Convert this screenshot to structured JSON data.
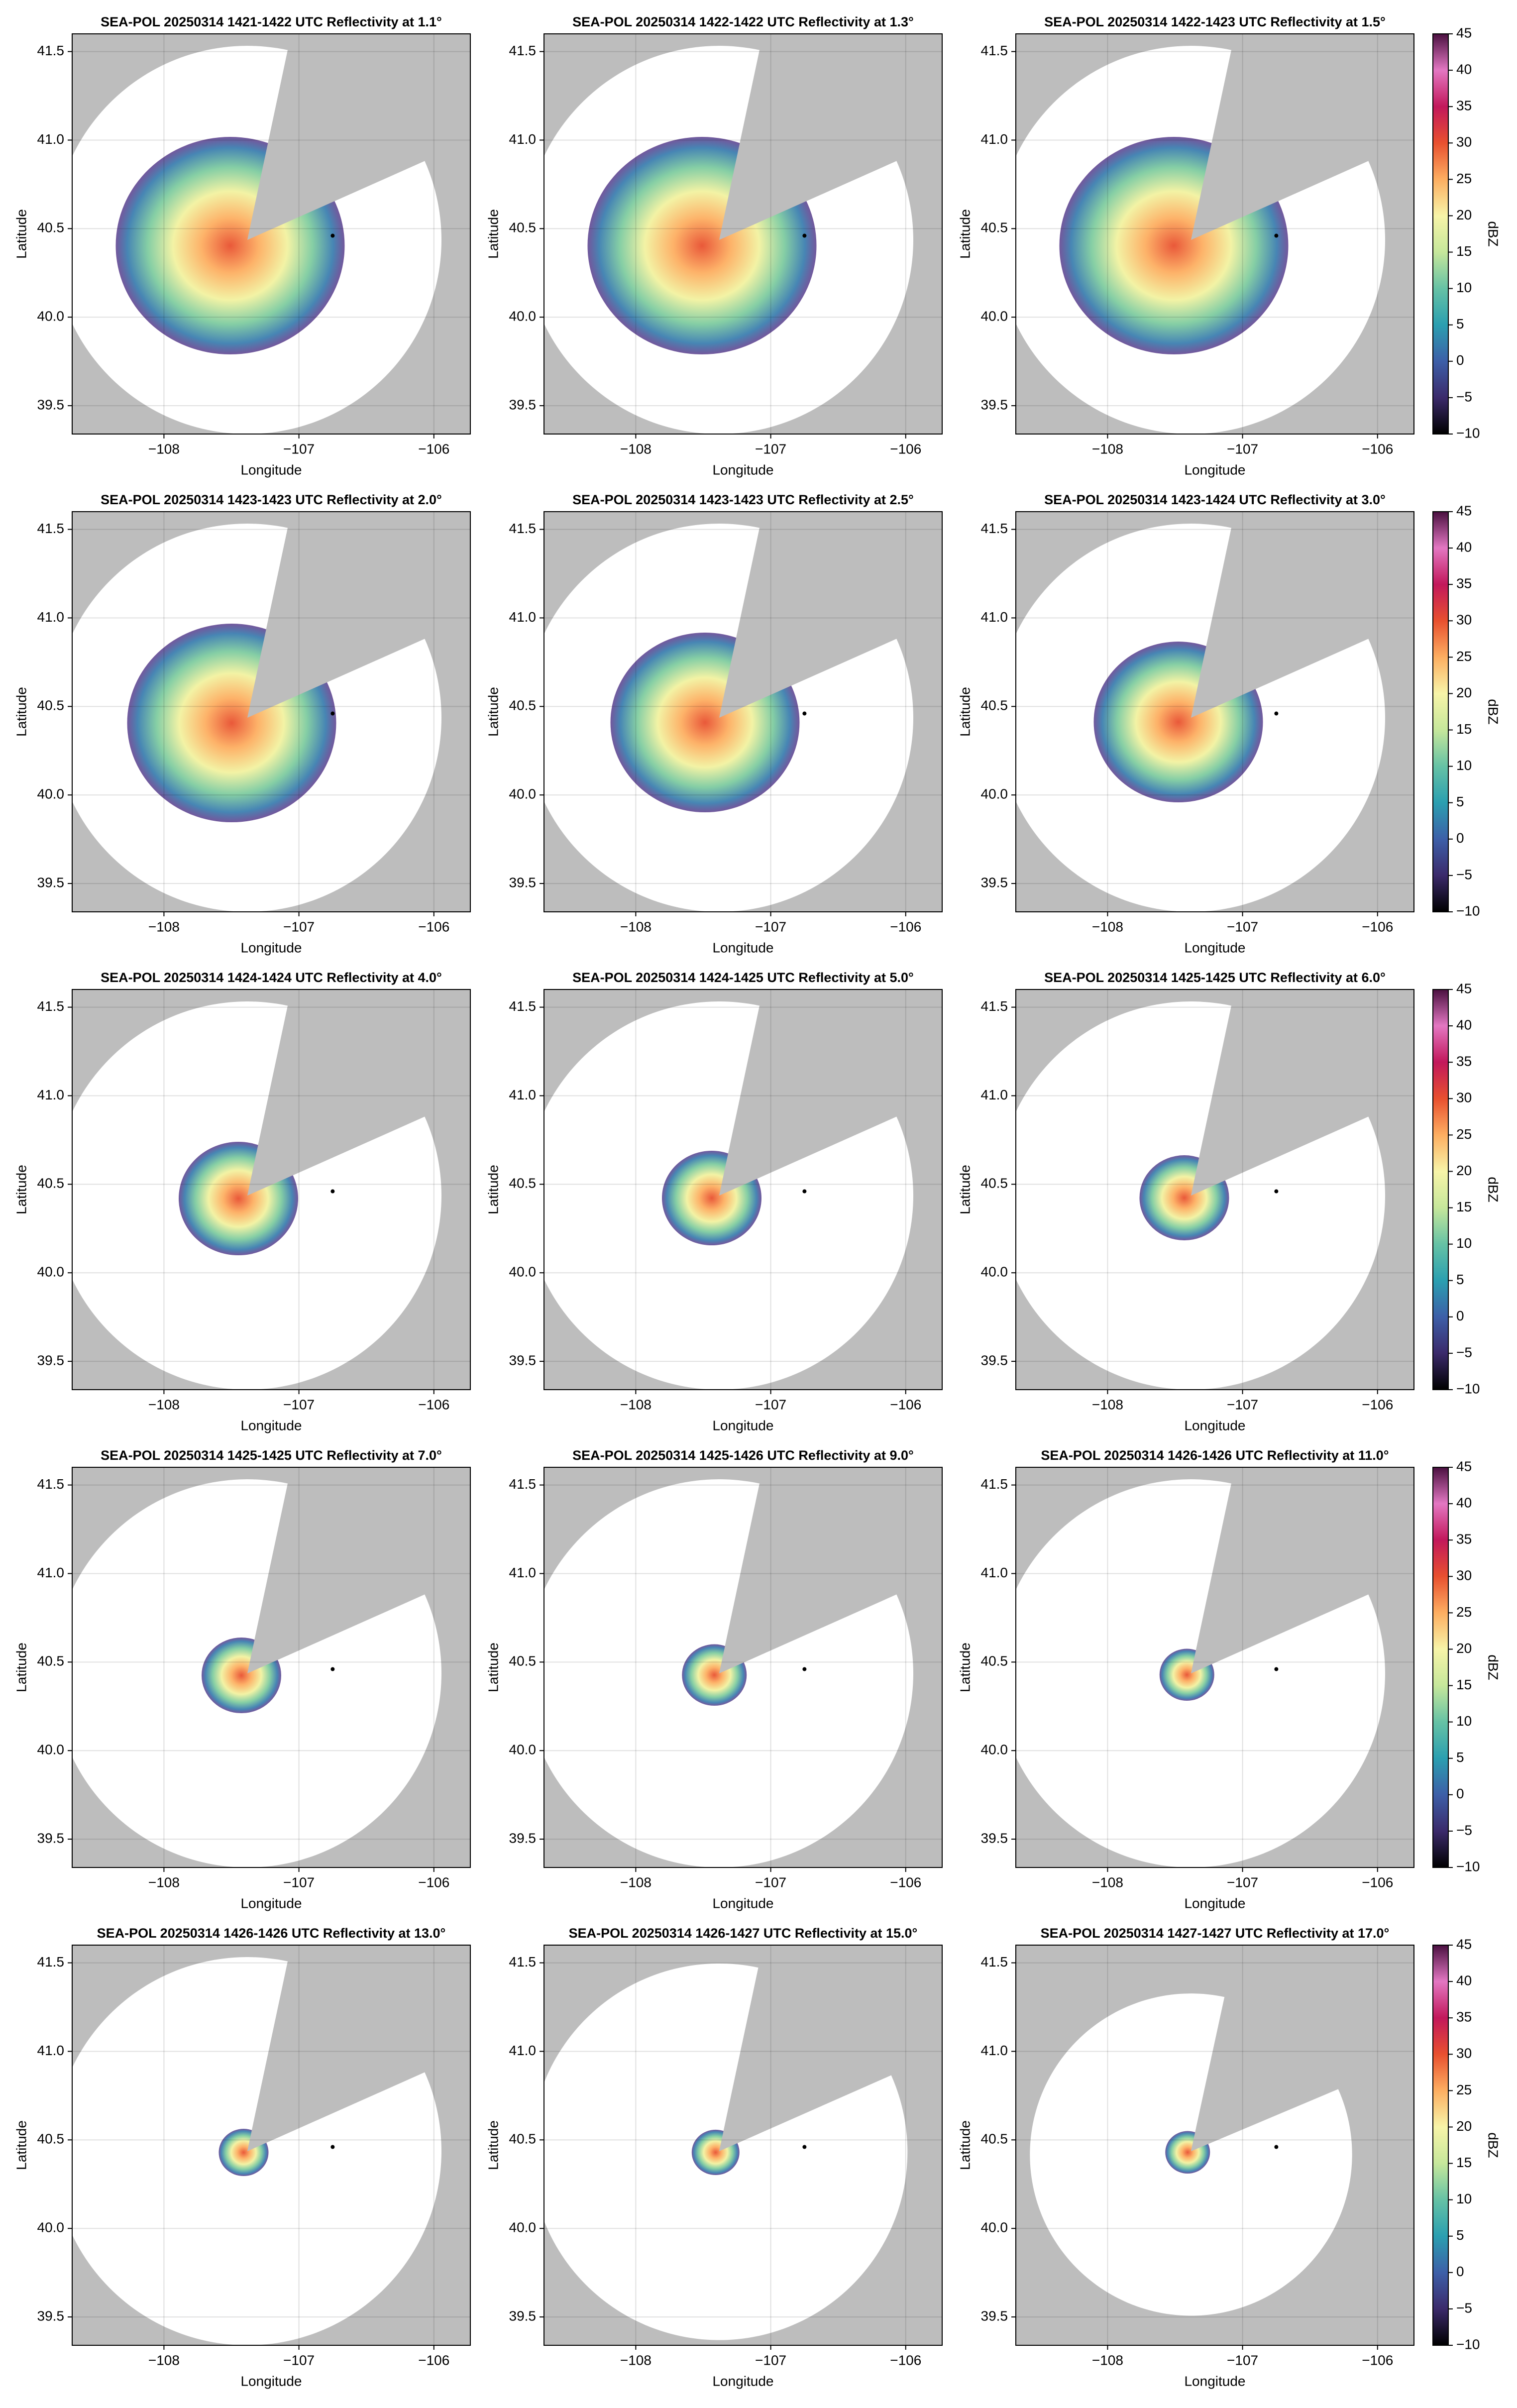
{
  "chart_data": [
    {
      "type": "ppi",
      "title": "SEA-POL 20250314 1421-1422 UTC Reflectivity at 1.1°",
      "xlabel": "Longitude",
      "ylabel": "Latitude",
      "xlim": [
        -108.68,
        -105.73
      ],
      "ylim": [
        39.34,
        41.6
      ],
      "xticks": [
        {
          "value": -108,
          "label": "−108"
        },
        {
          "value": -107,
          "label": "−107"
        },
        {
          "value": -106,
          "label": "−106"
        }
      ],
      "yticks": [
        39.5,
        {
          "value": 40,
          "label": "40.0"
        },
        40.5,
        {
          "value": 41,
          "label": "41.0"
        },
        41.5
      ],
      "grid": true,
      "points": {
        "x": [
          -106.75
        ],
        "y": [
          40.46
        ]
      }
    },
    {
      "type": "ppi",
      "title": "SEA-POL 20250314 1422-1422 UTC Reflectivity at 1.3°",
      "xlabel": "Longitude",
      "ylabel": "Latitude",
      "xlim": [
        -108.68,
        -105.73
      ],
      "ylim": [
        39.34,
        41.6
      ],
      "xticks": [
        {
          "value": -108,
          "label": "−108"
        },
        {
          "value": -107,
          "label": "−107"
        },
        {
          "value": -106,
          "label": "−106"
        }
      ],
      "yticks": [
        39.5,
        {
          "value": 40,
          "label": "40.0"
        },
        40.5,
        {
          "value": 41,
          "label": "41.0"
        },
        41.5
      ],
      "grid": true,
      "points": {
        "x": [
          -106.75
        ],
        "y": [
          40.46
        ]
      }
    },
    {
      "type": "ppi",
      "title": "SEA-POL 20250314 1422-1423 UTC Reflectivity at 1.5°",
      "xlabel": "Longitude",
      "ylabel": "Latitude",
      "xlim": [
        -108.68,
        -105.73
      ],
      "ylim": [
        39.34,
        41.6
      ],
      "xticks": [
        {
          "value": -108,
          "label": "−108"
        },
        {
          "value": -107,
          "label": "−107"
        },
        {
          "value": -106,
          "label": "−106"
        }
      ],
      "yticks": [
        39.5,
        {
          "value": 40,
          "label": "40.0"
        },
        40.5,
        {
          "value": 41,
          "label": "41.0"
        },
        41.5
      ],
      "grid": true,
      "points": {
        "x": [
          -106.75
        ],
        "y": [
          40.46
        ]
      },
      "colorbar": {
        "label": "dBZ",
        "lim": [
          -10,
          45
        ],
        "ticks": [
          {
            "value": -10,
            "label": "−10"
          },
          {
            "value": -5,
            "label": "−5"
          },
          0,
          5,
          10,
          15,
          20,
          25,
          30,
          35,
          40,
          45
        ],
        "colors": [
          "#000000",
          "#3b2a6b",
          "#3d5fa8",
          "#2b9fb0",
          "#66c2a5",
          "#c6e79b",
          "#f7f4a8",
          "#fdae61",
          "#e8502f",
          "#c2185b",
          "#e377c2",
          "#4a1040"
        ]
      }
    },
    {
      "type": "ppi",
      "title": "SEA-POL 20250314 1423-1423 UTC Reflectivity at 2.0°",
      "xlabel": "Longitude",
      "ylabel": "Latitude",
      "xlim": [
        -108.68,
        -105.73
      ],
      "ylim": [
        39.34,
        41.6
      ],
      "xticks": [
        {
          "value": -108,
          "label": "−108"
        },
        {
          "value": -107,
          "label": "−107"
        },
        {
          "value": -106,
          "label": "−106"
        }
      ],
      "yticks": [
        39.5,
        {
          "value": 40,
          "label": "40.0"
        },
        40.5,
        {
          "value": 41,
          "label": "41.0"
        },
        41.5
      ],
      "grid": true,
      "points": {
        "x": [
          -106.75
        ],
        "y": [
          40.46
        ]
      }
    },
    {
      "type": "ppi",
      "title": "SEA-POL 20250314 1423-1423 UTC Reflectivity at 2.5°",
      "xlabel": "Longitude",
      "ylabel": "Latitude",
      "xlim": [
        -108.68,
        -105.73
      ],
      "ylim": [
        39.34,
        41.6
      ],
      "xticks": [
        {
          "value": -108,
          "label": "−108"
        },
        {
          "value": -107,
          "label": "−107"
        },
        {
          "value": -106,
          "label": "−106"
        }
      ],
      "yticks": [
        39.5,
        {
          "value": 40,
          "label": "40.0"
        },
        40.5,
        {
          "value": 41,
          "label": "41.0"
        },
        41.5
      ],
      "grid": true,
      "points": {
        "x": [
          -106.75
        ],
        "y": [
          40.46
        ]
      }
    },
    {
      "type": "ppi",
      "title": "SEA-POL 20250314 1423-1424 UTC Reflectivity at 3.0°",
      "xlabel": "Longitude",
      "ylabel": "Latitude",
      "xlim": [
        -108.68,
        -105.73
      ],
      "ylim": [
        39.34,
        41.6
      ],
      "xticks": [
        {
          "value": -108,
          "label": "−108"
        },
        {
          "value": -107,
          "label": "−107"
        },
        {
          "value": -106,
          "label": "−106"
        }
      ],
      "yticks": [
        39.5,
        {
          "value": 40,
          "label": "40.0"
        },
        40.5,
        {
          "value": 41,
          "label": "41.0"
        },
        41.5
      ],
      "grid": true,
      "points": {
        "x": [
          -106.75
        ],
        "y": [
          40.46
        ]
      },
      "colorbar": {
        "label": "dBZ",
        "lim": [
          -10,
          45
        ],
        "ticks": [
          {
            "value": -10,
            "label": "−10"
          },
          {
            "value": -5,
            "label": "−5"
          },
          0,
          5,
          10,
          15,
          20,
          25,
          30,
          35,
          40,
          45
        ],
        "colors": [
          "#000000",
          "#3b2a6b",
          "#3d5fa8",
          "#2b9fb0",
          "#66c2a5",
          "#c6e79b",
          "#f7f4a8",
          "#fdae61",
          "#e8502f",
          "#c2185b",
          "#e377c2",
          "#4a1040"
        ]
      }
    },
    {
      "type": "ppi",
      "title": "SEA-POL 20250314 1424-1424 UTC Reflectivity at 4.0°",
      "xlabel": "Longitude",
      "ylabel": "Latitude",
      "xlim": [
        -108.68,
        -105.73
      ],
      "ylim": [
        39.34,
        41.6
      ],
      "xticks": [
        {
          "value": -108,
          "label": "−108"
        },
        {
          "value": -107,
          "label": "−107"
        },
        {
          "value": -106,
          "label": "−106"
        }
      ],
      "yticks": [
        39.5,
        {
          "value": 40,
          "label": "40.0"
        },
        40.5,
        {
          "value": 41,
          "label": "41.0"
        },
        41.5
      ],
      "grid": true,
      "points": {
        "x": [
          -106.75
        ],
        "y": [
          40.46
        ]
      }
    },
    {
      "type": "ppi",
      "title": "SEA-POL 20250314 1424-1425 UTC Reflectivity at 5.0°",
      "xlabel": "Longitude",
      "ylabel": "Latitude",
      "xlim": [
        -108.68,
        -105.73
      ],
      "ylim": [
        39.34,
        41.6
      ],
      "xticks": [
        {
          "value": -108,
          "label": "−108"
        },
        {
          "value": -107,
          "label": "−107"
        },
        {
          "value": -106,
          "label": "−106"
        }
      ],
      "yticks": [
        39.5,
        {
          "value": 40,
          "label": "40.0"
        },
        40.5,
        {
          "value": 41,
          "label": "41.0"
        },
        41.5
      ],
      "grid": true,
      "points": {
        "x": [
          -106.75
        ],
        "y": [
          40.46
        ]
      }
    },
    {
      "type": "ppi",
      "title": "SEA-POL 20250314 1425-1425 UTC Reflectivity at 6.0°",
      "xlabel": "Longitude",
      "ylabel": "Latitude",
      "xlim": [
        -108.68,
        -105.73
      ],
      "ylim": [
        39.34,
        41.6
      ],
      "xticks": [
        {
          "value": -108,
          "label": "−108"
        },
        {
          "value": -107,
          "label": "−107"
        },
        {
          "value": -106,
          "label": "−106"
        }
      ],
      "yticks": [
        39.5,
        {
          "value": 40,
          "label": "40.0"
        },
        40.5,
        {
          "value": 41,
          "label": "41.0"
        },
        41.5
      ],
      "grid": true,
      "points": {
        "x": [
          -106.75
        ],
        "y": [
          40.46
        ]
      },
      "colorbar": {
        "label": "dBZ",
        "lim": [
          -10,
          45
        ],
        "ticks": [
          {
            "value": -10,
            "label": "−10"
          },
          {
            "value": -5,
            "label": "−5"
          },
          0,
          5,
          10,
          15,
          20,
          25,
          30,
          35,
          40,
          45
        ],
        "colors": [
          "#000000",
          "#3b2a6b",
          "#3d5fa8",
          "#2b9fb0",
          "#66c2a5",
          "#c6e79b",
          "#f7f4a8",
          "#fdae61",
          "#e8502f",
          "#c2185b",
          "#e377c2",
          "#4a1040"
        ]
      }
    },
    {
      "type": "ppi",
      "title": "SEA-POL 20250314 1425-1425 UTC Reflectivity at 7.0°",
      "xlabel": "Longitude",
      "ylabel": "Latitude",
      "xlim": [
        -108.68,
        -105.73
      ],
      "ylim": [
        39.34,
        41.6
      ],
      "xticks": [
        {
          "value": -108,
          "label": "−108"
        },
        {
          "value": -107,
          "label": "−107"
        },
        {
          "value": -106,
          "label": "−106"
        }
      ],
      "yticks": [
        39.5,
        {
          "value": 40,
          "label": "40.0"
        },
        40.5,
        {
          "value": 41,
          "label": "41.0"
        },
        41.5
      ],
      "grid": true,
      "points": {
        "x": [
          -106.75
        ],
        "y": [
          40.46
        ]
      }
    },
    {
      "type": "ppi",
      "title": "SEA-POL 20250314 1425-1426 UTC Reflectivity at 9.0°",
      "xlabel": "Longitude",
      "ylabel": "Latitude",
      "xlim": [
        -108.68,
        -105.73
      ],
      "ylim": [
        39.34,
        41.6
      ],
      "xticks": [
        {
          "value": -108,
          "label": "−108"
        },
        {
          "value": -107,
          "label": "−107"
        },
        {
          "value": -106,
          "label": "−106"
        }
      ],
      "yticks": [
        39.5,
        {
          "value": 40,
          "label": "40.0"
        },
        40.5,
        {
          "value": 41,
          "label": "41.0"
        },
        41.5
      ],
      "grid": true,
      "points": {
        "x": [
          -106.75
        ],
        "y": [
          40.46
        ]
      }
    },
    {
      "type": "ppi",
      "title": "SEA-POL 20250314 1426-1426 UTC Reflectivity at 11.0°",
      "xlabel": "Longitude",
      "ylabel": "Latitude",
      "xlim": [
        -108.68,
        -105.73
      ],
      "ylim": [
        39.34,
        41.6
      ],
      "xticks": [
        {
          "value": -108,
          "label": "−108"
        },
        {
          "value": -107,
          "label": "−107"
        },
        {
          "value": -106,
          "label": "−106"
        }
      ],
      "yticks": [
        39.5,
        {
          "value": 40,
          "label": "40.0"
        },
        40.5,
        {
          "value": 41,
          "label": "41.0"
        },
        41.5
      ],
      "grid": true,
      "points": {
        "x": [
          -106.75
        ],
        "y": [
          40.46
        ]
      },
      "colorbar": {
        "label": "dBZ",
        "lim": [
          -10,
          45
        ],
        "ticks": [
          {
            "value": -10,
            "label": "−10"
          },
          {
            "value": -5,
            "label": "−5"
          },
          0,
          5,
          10,
          15,
          20,
          25,
          30,
          35,
          40,
          45
        ],
        "colors": [
          "#000000",
          "#3b2a6b",
          "#3d5fa8",
          "#2b9fb0",
          "#66c2a5",
          "#c6e79b",
          "#f7f4a8",
          "#fdae61",
          "#e8502f",
          "#c2185b",
          "#e377c2",
          "#4a1040"
        ]
      }
    },
    {
      "type": "ppi",
      "title": "SEA-POL 20250314 1426-1426 UTC Reflectivity at 13.0°",
      "xlabel": "Longitude",
      "ylabel": "Latitude",
      "xlim": [
        -108.68,
        -105.73
      ],
      "ylim": [
        39.34,
        41.6
      ],
      "xticks": [
        {
          "value": -108,
          "label": "−108"
        },
        {
          "value": -107,
          "label": "−107"
        },
        {
          "value": -106,
          "label": "−106"
        }
      ],
      "yticks": [
        39.5,
        {
          "value": 40,
          "label": "40.0"
        },
        40.5,
        {
          "value": 41,
          "label": "41.0"
        },
        41.5
      ],
      "grid": true,
      "points": {
        "x": [
          -106.75
        ],
        "y": [
          40.46
        ]
      }
    },
    {
      "type": "ppi",
      "title": "SEA-POL 20250314 1426-1427 UTC Reflectivity at 15.0°",
      "xlabel": "Longitude",
      "ylabel": "Latitude",
      "xlim": [
        -108.68,
        -105.73
      ],
      "ylim": [
        39.34,
        41.6
      ],
      "xticks": [
        {
          "value": -108,
          "label": "−108"
        },
        {
          "value": -107,
          "label": "−107"
        },
        {
          "value": -106,
          "label": "−106"
        }
      ],
      "yticks": [
        39.5,
        {
          "value": 40,
          "label": "40.0"
        },
        40.5,
        {
          "value": 41,
          "label": "41.0"
        },
        41.5
      ],
      "grid": true,
      "points": {
        "x": [
          -106.75
        ],
        "y": [
          40.46
        ]
      }
    },
    {
      "type": "ppi",
      "title": "SEA-POL 20250314 1427-1427 UTC Reflectivity at 17.0°",
      "xlabel": "Longitude",
      "ylabel": "Latitude",
      "xlim": [
        -108.68,
        -105.73
      ],
      "ylim": [
        39.34,
        41.6
      ],
      "xticks": [
        {
          "value": -108,
          "label": "−108"
        },
        {
          "value": -107,
          "label": "−107"
        },
        {
          "value": -106,
          "label": "−106"
        }
      ],
      "yticks": [
        39.5,
        {
          "value": 40,
          "label": "40.0"
        },
        40.5,
        {
          "value": 41,
          "label": "41.0"
        },
        41.5
      ],
      "grid": true,
      "points": {
        "x": [
          -106.75
        ],
        "y": [
          40.46
        ]
      },
      "colorbar": {
        "label": "dBZ",
        "lim": [
          -10,
          45
        ],
        "ticks": [
          {
            "value": -10,
            "label": "−10"
          },
          {
            "value": -5,
            "label": "−5"
          },
          0,
          5,
          10,
          15,
          20,
          25,
          30,
          35,
          40,
          45
        ],
        "colors": [
          "#000000",
          "#3b2a6b",
          "#3d5fa8",
          "#2b9fb0",
          "#66c2a5",
          "#c6e79b",
          "#f7f4a8",
          "#fdae61",
          "#e8502f",
          "#c2185b",
          "#e377c2",
          "#4a1040"
        ]
      }
    }
  ]
}
